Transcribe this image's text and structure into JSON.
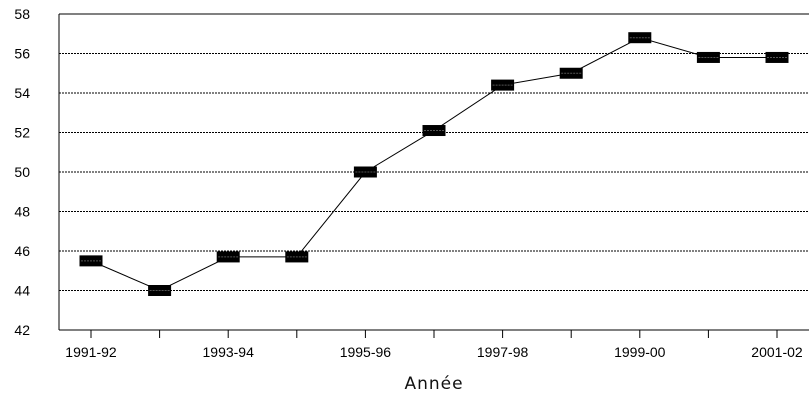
{
  "chart_data": {
    "type": "line",
    "xlabel": "Année",
    "ylabel": "",
    "ylim": [
      42,
      58
    ],
    "yticks": [
      42,
      44,
      46,
      48,
      50,
      52,
      54,
      56,
      58
    ],
    "grid": true,
    "x": [
      "1991-92",
      "1992-93",
      "1993-94",
      "1994-95",
      "1995-96",
      "1996-97",
      "1997-98",
      "1998-99",
      "1999-00",
      "2000-01",
      "2001-02"
    ],
    "xtick_labels": [
      "1991-92",
      "1993-94",
      "1995-96",
      "1997-98",
      "1999-00",
      "2001-02"
    ],
    "series": [
      {
        "values": [
          45.5,
          44.0,
          45.7,
          45.7,
          50.0,
          52.1,
          54.4,
          55.0,
          56.8,
          55.8,
          55.8
        ]
      }
    ],
    "colors": {
      "line": "#000000",
      "marker": "#000000",
      "grid": "#000000"
    }
  }
}
